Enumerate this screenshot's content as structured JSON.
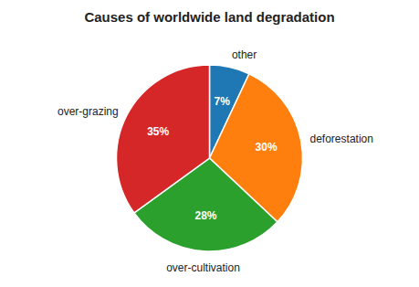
{
  "chart_data": {
    "type": "pie",
    "title": "Causes of worldwide land degradation",
    "categories": [
      "other",
      "deforestation",
      "over-cultivation",
      "over-grazing"
    ],
    "values": [
      7,
      30,
      28,
      35
    ],
    "value_labels": [
      "7%",
      "30%",
      "28%",
      "35%"
    ],
    "data_labels": true
  }
}
